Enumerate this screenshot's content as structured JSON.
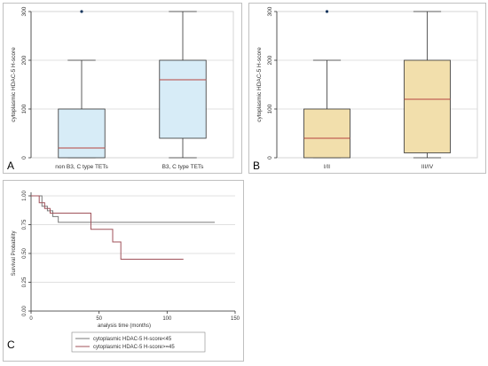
{
  "colors": {
    "box_a_fill": "#d7ecf7",
    "box_b_fill": "#f2dfac",
    "median": "#b7433f",
    "outlier": "#17375e",
    "axis": "#333333",
    "grid": "#d6d6d6",
    "panel_border": "#c0c0c0",
    "survival_low": "#7a7a7a",
    "survival_high": "#a0525a"
  },
  "chart_data": [
    {
      "panel_letter": "A",
      "type": "box",
      "ylabel": "cytoplasmic HDAC-5 H-score",
      "ylim": [
        0,
        300
      ],
      "yticks": [
        "0",
        "100",
        "200",
        "300"
      ],
      "grid": true,
      "categories": [
        "non B3, C type TETs",
        "B3, C type TETs"
      ],
      "boxes": [
        {
          "label": "non B3, C type TETs",
          "min": 0,
          "q1": 0,
          "median": 20,
          "q3": 100,
          "max": 200,
          "outliers": [
            300
          ]
        },
        {
          "label": "B3, C type TETs",
          "min": 0,
          "q1": 40,
          "median": 160,
          "q3": 200,
          "max": 300,
          "outliers": []
        }
      ]
    },
    {
      "panel_letter": "B",
      "type": "box",
      "ylabel": "cytoplasmic HDAC-5 H-score",
      "ylim": [
        0,
        300
      ],
      "yticks": [
        "0",
        "100",
        "200",
        "300"
      ],
      "grid": true,
      "categories": [
        "I/II",
        "III/IV"
      ],
      "boxes": [
        {
          "label": "I/II",
          "min": 0,
          "q1": 0,
          "median": 40,
          "q3": 100,
          "max": 200,
          "outliers": [
            300
          ]
        },
        {
          "label": "III/IV",
          "min": 0,
          "q1": 10,
          "median": 120,
          "q3": 200,
          "max": 300,
          "outliers": []
        }
      ]
    },
    {
      "panel_letter": "C",
      "type": "line",
      "subtype": "kaplan-meier",
      "xlabel": "analysis time (months)",
      "ylabel": "Survival Probability",
      "xlim": [
        0,
        150
      ],
      "ylim": [
        0,
        1
      ],
      "xticks": [
        "0",
        "50",
        "100",
        "150"
      ],
      "yticks": [
        "0.00",
        "0.25",
        "0.50",
        "0.75",
        "1.00"
      ],
      "grid": true,
      "legend_position": "bottom",
      "series": [
        {
          "name": "cytoplasmic HDAC-5 H-score<45",
          "x": [
            0,
            8,
            12,
            16,
            20,
            135
          ],
          "y": [
            1.0,
            0.91,
            0.87,
            0.82,
            0.77,
            0.77
          ]
        },
        {
          "name": "cytoplasmic HDAC-5 H-score>=45",
          "x": [
            0,
            6,
            10,
            14,
            44,
            60,
            66,
            112
          ],
          "y": [
            1.0,
            0.94,
            0.89,
            0.85,
            0.71,
            0.6,
            0.45,
            0.45
          ]
        }
      ]
    }
  ]
}
